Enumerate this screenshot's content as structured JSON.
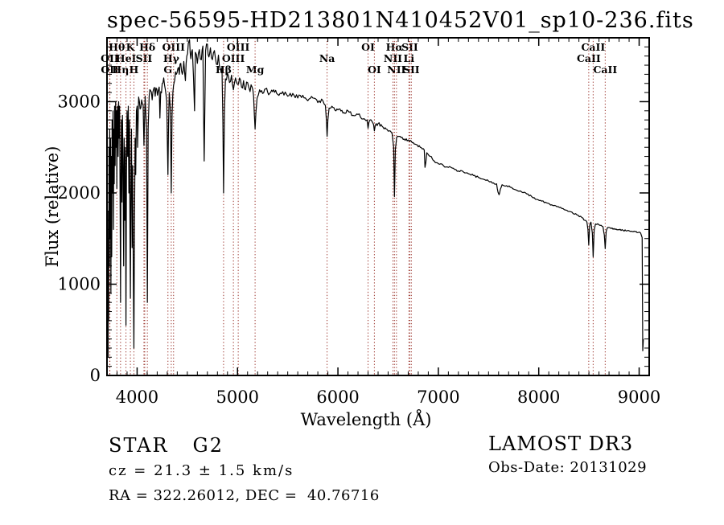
{
  "title": "spec-56595-HD213801N410452V01_sp10-236.fits",
  "annotations": {
    "class_label": "STAR",
    "subclass": "G2",
    "cz_line": "cz = 21.3 ± 1.5 km/s",
    "ra_dec_line": "RA = 322.26012, DEC =  40.76716",
    "survey": "LAMOST DR3",
    "obs_date": "Obs-Date: 20131029"
  },
  "chart_data": {
    "type": "line",
    "title": "spec-56595-HD213801N410452V01_sp10-236.fits",
    "xlabel": "Wavelength (Å)",
    "ylabel": "Flux (relative)",
    "xlim": [
      3700,
      9100
    ],
    "ylim": [
      0,
      3700
    ],
    "x_major_ticks": [
      4000,
      5000,
      6000,
      7000,
      8000,
      9000
    ],
    "y_major_ticks": [
      0,
      1000,
      2000,
      3000
    ],
    "x_minor_step": 100,
    "y_minor_step": 100,
    "grid": false,
    "spectrum_color": "#000000",
    "reference_line_color": "#993028",
    "spectral_lines": [
      {
        "label": "Hθ",
        "wavelength": 3798,
        "row": 1
      },
      {
        "label": "K",
        "wavelength": 3933,
        "row": 1
      },
      {
        "label": "Hδ",
        "wavelength": 4102,
        "row": 1
      },
      {
        "label": "OIII",
        "wavelength": 4363,
        "row": 1
      },
      {
        "label": "OIII",
        "wavelength": 5007,
        "row": 1
      },
      {
        "label": "OI",
        "wavelength": 6300,
        "row": 1
      },
      {
        "label": "Hα",
        "wavelength": 6563,
        "row": 1
      },
      {
        "label": "SII",
        "wavelength": 6716,
        "row": 1
      },
      {
        "label": "CaII",
        "wavelength": 8542,
        "row": 1
      },
      {
        "label": "OII",
        "wavelength": 3727,
        "row": 2
      },
      {
        "label": "HeI",
        "wavelength": 3889,
        "row": 2
      },
      {
        "label": "SII",
        "wavelength": 4068,
        "row": 2
      },
      {
        "label": "Hγ",
        "wavelength": 4340,
        "row": 2
      },
      {
        "label": "OIII",
        "wavelength": 4959,
        "row": 2
      },
      {
        "label": "Na",
        "wavelength": 5892,
        "row": 2
      },
      {
        "label": "NII",
        "wavelength": 6548,
        "row": 2
      },
      {
        "label": "Li",
        "wavelength": 6707,
        "row": 2
      },
      {
        "label": "CaII",
        "wavelength": 8498,
        "row": 2
      },
      {
        "label": "OII",
        "wavelength": 3729,
        "row": 3
      },
      {
        "label": "Hη",
        "wavelength": 3835,
        "row": 3
      },
      {
        "label": "H",
        "wavelength": 3968,
        "row": 3
      },
      {
        "label": "G",
        "wavelength": 4307,
        "row": 3
      },
      {
        "label": "Hβ",
        "wavelength": 4861,
        "row": 3
      },
      {
        "label": "Mg",
        "wavelength": 5175,
        "row": 3
      },
      {
        "label": "OI",
        "wavelength": 6363,
        "row": 3
      },
      {
        "label": "NII",
        "wavelength": 6583,
        "row": 3
      },
      {
        "label": "SII",
        "wavelength": 6731,
        "row": 3
      },
      {
        "label": "CaII",
        "wavelength": 8662,
        "row": 3
      }
    ],
    "extra_reference_lines": [
      4076
    ],
    "noise_segments": [
      [
        4000,
        4400,
        60
      ],
      [
        4400,
        5200,
        60
      ],
      [
        5200,
        5900,
        28
      ],
      [
        5900,
        6500,
        18
      ],
      [
        6500,
        7600,
        12
      ],
      [
        7600,
        9020,
        9
      ]
    ],
    "series": [
      {
        "name": "spectrum",
        "points": [
          [
            3708,
            1000
          ],
          [
            3711,
            200
          ],
          [
            3714,
            1800
          ],
          [
            3717,
            600
          ],
          [
            3720,
            2500
          ],
          [
            3724,
            1200
          ],
          [
            3727,
            2700
          ],
          [
            3731,
            1500
          ],
          [
            3735,
            2600
          ],
          [
            3739,
            900
          ],
          [
            3743,
            2400
          ],
          [
            3747,
            1300
          ],
          [
            3751,
            2800
          ],
          [
            3756,
            2000
          ],
          [
            3760,
            2900
          ],
          [
            3764,
            1600
          ],
          [
            3768,
            2700
          ],
          [
            3772,
            2100
          ],
          [
            3776,
            2950
          ],
          [
            3781,
            2300
          ],
          [
            3786,
            3000
          ],
          [
            3791,
            2500
          ],
          [
            3796,
            2900
          ],
          [
            3798,
            2050
          ],
          [
            3801,
            2800
          ],
          [
            3806,
            2950
          ],
          [
            3811,
            2400
          ],
          [
            3816,
            3000
          ],
          [
            3821,
            2600
          ],
          [
            3826,
            2950
          ],
          [
            3831,
            1800
          ],
          [
            3835,
            800
          ],
          [
            3839,
            2200
          ],
          [
            3844,
            2800
          ],
          [
            3849,
            1900
          ],
          [
            3854,
            2850
          ],
          [
            3860,
            2300
          ],
          [
            3866,
            1200
          ],
          [
            3871,
            2600
          ],
          [
            3877,
            1700
          ],
          [
            3883,
            2500
          ],
          [
            3889,
            550
          ],
          [
            3894,
            2200
          ],
          [
            3900,
            2900
          ],
          [
            3906,
            2400
          ],
          [
            3912,
            2950
          ],
          [
            3918,
            2000
          ],
          [
            3924,
            2800
          ],
          [
            3929,
            1600
          ],
          [
            3933,
            850
          ],
          [
            3938,
            2000
          ],
          [
            3944,
            2700
          ],
          [
            3950,
            1400
          ],
          [
            3956,
            2300
          ],
          [
            3962,
            1100
          ],
          [
            3968,
            300
          ],
          [
            3974,
            1700
          ],
          [
            3980,
            2600
          ],
          [
            3986,
            2200
          ],
          [
            3993,
            2900
          ],
          [
            4000,
            2950
          ],
          [
            4005,
            2500
          ],
          [
            4015,
            3050
          ],
          [
            4030,
            2920
          ],
          [
            4045,
            3020
          ],
          [
            4060,
            2960
          ],
          [
            4068,
            2520
          ],
          [
            4080,
            3060
          ],
          [
            4094,
            2700
          ],
          [
            4102,
            800
          ],
          [
            4110,
            2700
          ],
          [
            4120,
            3060
          ],
          [
            4135,
            3120
          ],
          [
            4150,
            3020
          ],
          [
            4165,
            3140
          ],
          [
            4180,
            3060
          ],
          [
            4195,
            3140
          ],
          [
            4210,
            3120
          ],
          [
            4220,
            3160
          ],
          [
            4227,
            2820
          ],
          [
            4235,
            3110
          ],
          [
            4250,
            3200
          ],
          [
            4265,
            3260
          ],
          [
            4280,
            3140
          ],
          [
            4295,
            3000
          ],
          [
            4302,
            2500
          ],
          [
            4307,
            2200
          ],
          [
            4313,
            2750
          ],
          [
            4320,
            3100
          ],
          [
            4332,
            2900
          ],
          [
            4340,
            2000
          ],
          [
            4348,
            2850
          ],
          [
            4356,
            3100
          ],
          [
            4363,
            3180
          ],
          [
            4375,
            3240
          ],
          [
            4390,
            3300
          ],
          [
            4405,
            3360
          ],
          [
            4420,
            3300
          ],
          [
            4435,
            3420
          ],
          [
            4450,
            3300
          ],
          [
            4465,
            3440
          ],
          [
            4481,
            3230
          ],
          [
            4495,
            3500
          ],
          [
            4510,
            3640
          ],
          [
            4522,
            3680
          ],
          [
            4535,
            3470
          ],
          [
            4550,
            3570
          ],
          [
            4572,
            2900
          ],
          [
            4580,
            3540
          ],
          [
            4600,
            3420
          ],
          [
            4620,
            3570
          ],
          [
            4640,
            3460
          ],
          [
            4655,
            3610
          ],
          [
            4668,
            2350
          ],
          [
            4682,
            3560
          ],
          [
            4700,
            3630
          ],
          [
            4715,
            3490
          ],
          [
            4730,
            3590
          ],
          [
            4750,
            3460
          ],
          [
            4770,
            3560
          ],
          [
            4790,
            3410
          ],
          [
            4810,
            3510
          ],
          [
            4830,
            3360
          ],
          [
            4845,
            3380
          ],
          [
            4854,
            2800
          ],
          [
            4861,
            2000
          ],
          [
            4870,
            2900
          ],
          [
            4880,
            3250
          ],
          [
            4900,
            3310
          ],
          [
            4920,
            3210
          ],
          [
            4940,
            3290
          ],
          [
            4959,
            3130
          ],
          [
            4980,
            3260
          ],
          [
            5000,
            3190
          ],
          [
            5020,
            3260
          ],
          [
            5040,
            3160
          ],
          [
            5060,
            3230
          ],
          [
            5080,
            3130
          ],
          [
            5100,
            3210
          ],
          [
            5125,
            3110
          ],
          [
            5145,
            3160
          ],
          [
            5160,
            3060
          ],
          [
            5168,
            2850
          ],
          [
            5175,
            2700
          ],
          [
            5183,
            2880
          ],
          [
            5195,
            3040
          ],
          [
            5220,
            3130
          ],
          [
            5250,
            3090
          ],
          [
            5280,
            3140
          ],
          [
            5320,
            3090
          ],
          [
            5360,
            3130
          ],
          [
            5400,
            3080
          ],
          [
            5450,
            3110
          ],
          [
            5500,
            3060
          ],
          [
            5550,
            3090
          ],
          [
            5600,
            3040
          ],
          [
            5650,
            3070
          ],
          [
            5700,
            3010
          ],
          [
            5750,
            3040
          ],
          [
            5800,
            2990
          ],
          [
            5850,
            3010
          ],
          [
            5875,
            2960
          ],
          [
            5885,
            2800
          ],
          [
            5892,
            2620
          ],
          [
            5900,
            2800
          ],
          [
            5912,
            2930
          ],
          [
            5940,
            2950
          ],
          [
            5980,
            2900
          ],
          [
            6020,
            2920
          ],
          [
            6060,
            2880
          ],
          [
            6100,
            2900
          ],
          [
            6150,
            2850
          ],
          [
            6200,
            2860
          ],
          [
            6250,
            2810
          ],
          [
            6290,
            2800
          ],
          [
            6300,
            2710
          ],
          [
            6310,
            2780
          ],
          [
            6330,
            2800
          ],
          [
            6355,
            2750
          ],
          [
            6363,
            2680
          ],
          [
            6372,
            2740
          ],
          [
            6400,
            2760
          ],
          [
            6440,
            2730
          ],
          [
            6480,
            2700
          ],
          [
            6510,
            2680
          ],
          [
            6540,
            2650
          ],
          [
            6555,
            2500
          ],
          [
            6563,
            1960
          ],
          [
            6572,
            2480
          ],
          [
            6585,
            2610
          ],
          [
            6620,
            2620
          ],
          [
            6660,
            2590
          ],
          [
            6700,
            2580
          ],
          [
            6740,
            2550
          ],
          [
            6780,
            2530
          ],
          [
            6820,
            2500
          ],
          [
            6860,
            2470
          ],
          [
            6867,
            2280
          ],
          [
            6875,
            2330
          ],
          [
            6885,
            2440
          ],
          [
            6920,
            2400
          ],
          [
            6960,
            2350
          ],
          [
            7000,
            2320
          ],
          [
            7050,
            2300
          ],
          [
            7100,
            2280
          ],
          [
            7150,
            2270
          ],
          [
            7200,
            2240
          ],
          [
            7250,
            2230
          ],
          [
            7300,
            2210
          ],
          [
            7350,
            2190
          ],
          [
            7400,
            2170
          ],
          [
            7450,
            2150
          ],
          [
            7500,
            2130
          ],
          [
            7550,
            2110
          ],
          [
            7580,
            2100
          ],
          [
            7594,
            2010
          ],
          [
            7605,
            1980
          ],
          [
            7618,
            2040
          ],
          [
            7635,
            2090
          ],
          [
            7680,
            2080
          ],
          [
            7730,
            2060
          ],
          [
            7780,
            2030
          ],
          [
            7830,
            2010
          ],
          [
            7880,
            1990
          ],
          [
            7930,
            1960
          ],
          [
            7980,
            1930
          ],
          [
            8030,
            1910
          ],
          [
            8080,
            1890
          ],
          [
            8130,
            1870
          ],
          [
            8180,
            1850
          ],
          [
            8230,
            1830
          ],
          [
            8280,
            1810
          ],
          [
            8330,
            1790
          ],
          [
            8380,
            1760
          ],
          [
            8430,
            1730
          ],
          [
            8460,
            1700
          ],
          [
            8480,
            1680
          ],
          [
            8490,
            1600
          ],
          [
            8498,
            1430
          ],
          [
            8507,
            1640
          ],
          [
            8520,
            1680
          ],
          [
            8534,
            1560
          ],
          [
            8542,
            1300
          ],
          [
            8552,
            1590
          ],
          [
            8565,
            1660
          ],
          [
            8600,
            1650
          ],
          [
            8640,
            1630
          ],
          [
            8653,
            1540
          ],
          [
            8662,
            1390
          ],
          [
            8672,
            1580
          ],
          [
            8685,
            1620
          ],
          [
            8720,
            1610
          ],
          [
            8760,
            1600
          ],
          [
            8800,
            1595
          ],
          [
            8840,
            1590
          ],
          [
            8880,
            1585
          ],
          [
            8920,
            1580
          ],
          [
            8960,
            1575
          ],
          [
            9000,
            1570
          ],
          [
            9015,
            1560
          ],
          [
            9030,
            1510
          ],
          [
            9036,
            270
          ],
          [
            9042,
            400
          ]
        ]
      }
    ]
  }
}
